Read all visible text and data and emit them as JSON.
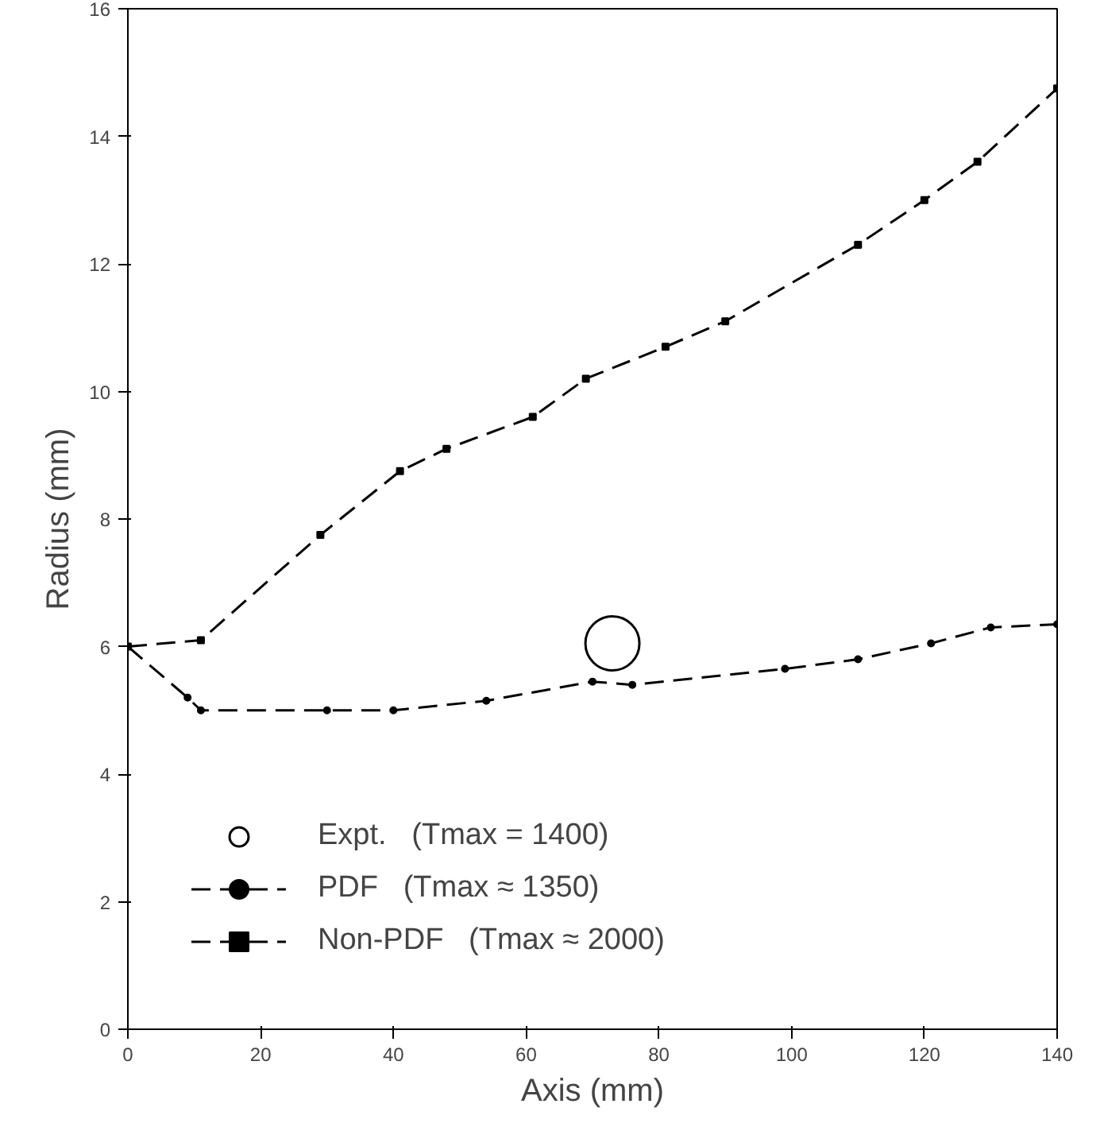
{
  "chart_data": {
    "type": "line",
    "xlabel": "Axis (mm)",
    "ylabel": "Radius (mm)",
    "xlim": [
      0,
      140
    ],
    "ylim": [
      0,
      16
    ],
    "xticks": [
      0,
      20,
      40,
      60,
      80,
      100,
      120,
      140
    ],
    "yticks": [
      0,
      2,
      4,
      6,
      8,
      10,
      12,
      14,
      16
    ],
    "grid": false,
    "legend": "bottom left",
    "line_style": "dashed",
    "series": [
      {
        "name": "Expt.   (Tmax = 1400)",
        "type": "scatter",
        "marker": "circle",
        "color": "#000000",
        "x": [
          73
        ],
        "values": [
          6.05
        ]
      },
      {
        "name": "PDF   (Tmax ≈ 1350)",
        "marker": "circle",
        "color": "#000000",
        "x": [
          0,
          9,
          11,
          30,
          40,
          54,
          70,
          76,
          99,
          110,
          121,
          130,
          140
        ],
        "values": [
          6,
          5.2,
          5,
          5,
          5,
          5.15,
          5.45,
          5.4,
          5.65,
          5.8,
          6.05,
          6.3,
          6.35
        ]
      },
      {
        "name": "Non-PDF   (Tmax ≈ 2000)",
        "marker": "square",
        "color": "#000000",
        "x": [
          0,
          11,
          29,
          41,
          48,
          61,
          69,
          81,
          90,
          110,
          120,
          128,
          140
        ],
        "values": [
          6,
          6.1,
          7.75,
          8.75,
          9.1,
          9.6,
          10.2,
          10.7,
          11.1,
          12.3,
          13.0,
          13.6,
          14.75
        ]
      }
    ]
  }
}
